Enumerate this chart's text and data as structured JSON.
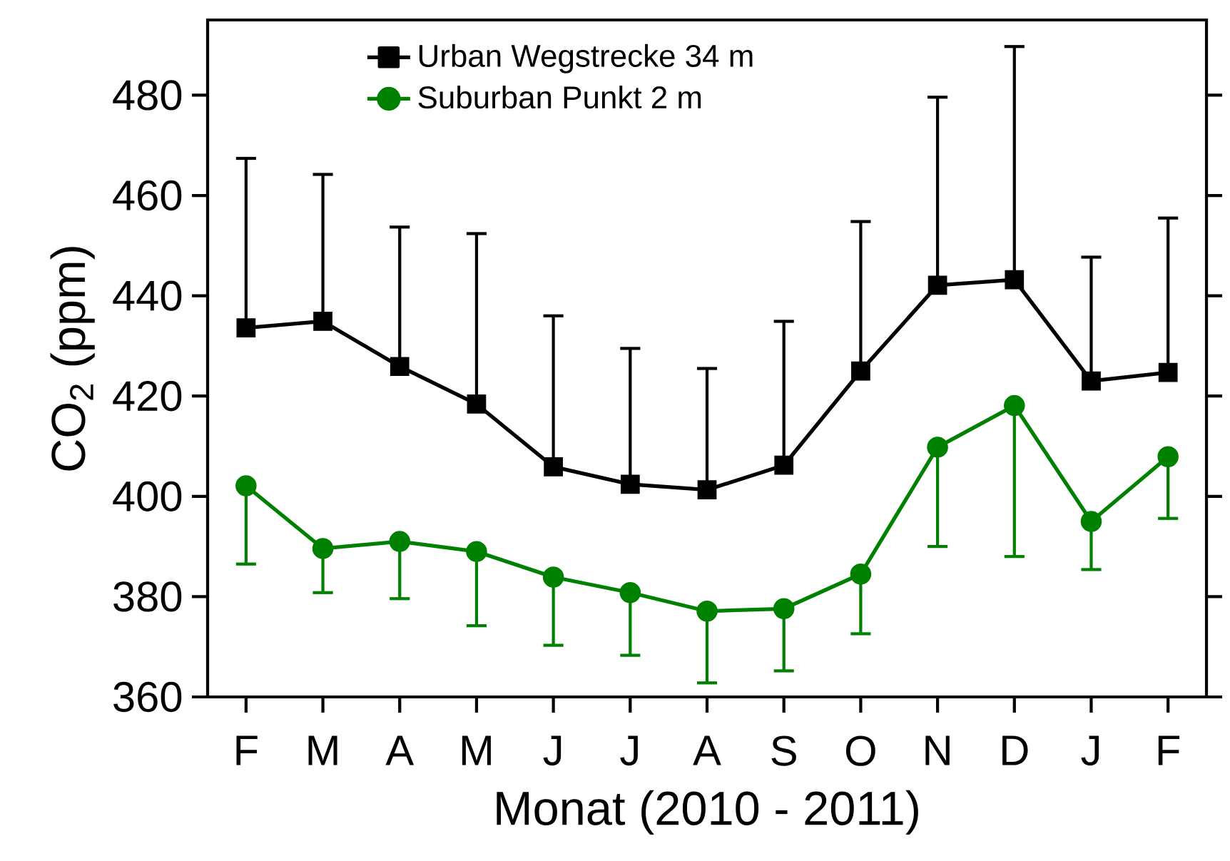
{
  "chart_data": {
    "type": "line",
    "xlabel": "Monat (2010 - 2011)",
    "ylabel": "CO$_{2}$ (ppm)",
    "categories": [
      "F",
      "M",
      "A",
      "M",
      "J",
      "J",
      "A",
      "S",
      "O",
      "N",
      "D",
      "J",
      "F"
    ],
    "ylim": [
      360,
      495
    ],
    "yticks": [
      360,
      380,
      400,
      420,
      440,
      460,
      480
    ],
    "legend": "top left",
    "line_style": "solid",
    "series": [
      {
        "name": "Urban Wegstrecke 34 m",
        "color": "#000000",
        "marker": "square",
        "values": [
          433.6,
          434.9,
          425.9,
          418.4,
          405.9,
          402.4,
          401.3,
          406.2,
          425.0,
          442.1,
          443.2,
          423.0,
          424.7
        ],
        "errors": [
          [
            433.6,
            467.4
          ],
          [
            434.9,
            464.2
          ],
          [
            425.9,
            453.7
          ],
          [
            418.4,
            452.4
          ],
          [
            405.9,
            436.0
          ],
          [
            402.4,
            429.5
          ],
          [
            401.3,
            425.5
          ],
          [
            406.2,
            434.9
          ],
          [
            425.0,
            454.8
          ],
          [
            442.1,
            479.6
          ],
          [
            443.2,
            489.7
          ],
          [
            423.0,
            447.7
          ],
          [
            424.7,
            455.5
          ]
        ]
      },
      {
        "name": "Suburban Punkt 2 m",
        "color": "#008000",
        "marker": "circle",
        "values": [
          402.1,
          389.6,
          391.0,
          389.0,
          383.9,
          380.8,
          377.1,
          377.6,
          384.5,
          409.8,
          418.1,
          395.0,
          407.9
        ],
        "errors": [
          [
            386.5,
            402.1
          ],
          [
            380.8,
            389.6
          ],
          [
            379.6,
            391.0
          ],
          [
            374.2,
            389.0
          ],
          [
            370.3,
            383.9
          ],
          [
            368.3,
            380.8
          ],
          [
            362.8,
            377.1
          ],
          [
            365.2,
            377.6
          ],
          [
            372.6,
            384.5
          ],
          [
            390.0,
            409.8
          ],
          [
            388.0,
            418.1
          ],
          [
            385.4,
            395.0
          ],
          [
            395.6,
            407.9
          ]
        ]
      }
    ]
  }
}
